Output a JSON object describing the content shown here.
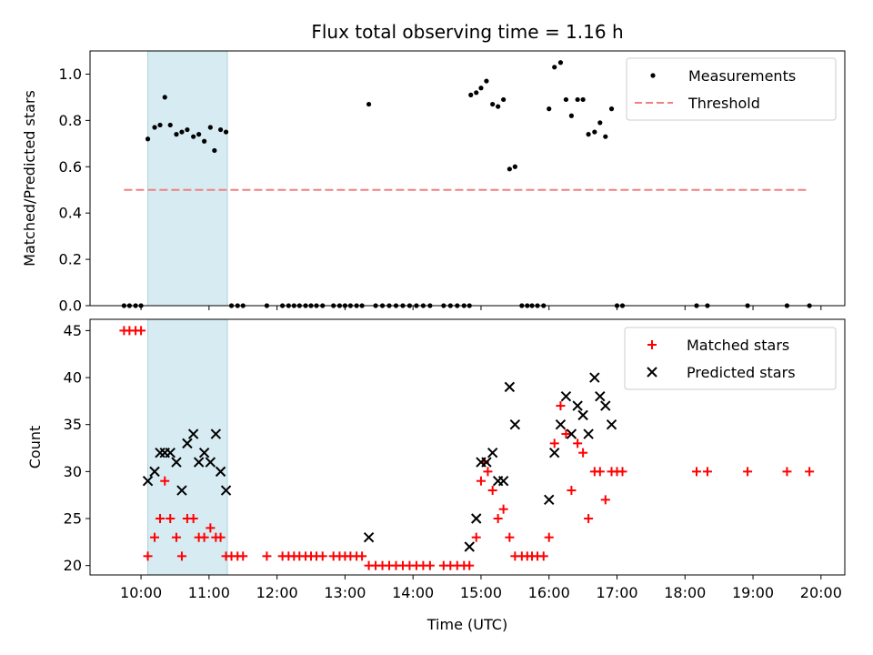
{
  "chart_data": [
    {
      "type": "scatter",
      "title": "Flux total observing time = 1.16 h",
      "xlabel": "",
      "ylabel": "Matched/Predicted stars",
      "xlim_hours": [
        9.25,
        20.35
      ],
      "ylim": [
        0,
        1.1
      ],
      "yticks": [
        0.0,
        0.2,
        0.4,
        0.6,
        0.8,
        1.0
      ],
      "ytick_labels": [
        "0.0",
        "0.2",
        "0.4",
        "0.6",
        "0.8",
        "1.0"
      ],
      "shaded_span_hours": [
        10.1,
        11.27
      ],
      "threshold": {
        "name": "Threshold",
        "value": 0.5,
        "x_start": 9.75,
        "x_end": 19.83,
        "color": "#f08080"
      },
      "legend_position": "upper right",
      "series": [
        {
          "name": "Measurements",
          "color": "#000000",
          "points": [
            [
              9.75,
              0
            ],
            [
              9.83,
              0
            ],
            [
              9.92,
              0
            ],
            [
              10.0,
              0
            ],
            [
              10.1,
              0.72
            ],
            [
              10.2,
              0.77
            ],
            [
              10.28,
              0.78
            ],
            [
              10.35,
              0.9
            ],
            [
              10.43,
              0.78
            ],
            [
              10.52,
              0.74
            ],
            [
              10.6,
              0.75
            ],
            [
              10.68,
              0.76
            ],
            [
              10.77,
              0.73
            ],
            [
              10.85,
              0.74
            ],
            [
              10.93,
              0.71
            ],
            [
              11.02,
              0.77
            ],
            [
              11.08,
              0.67
            ],
            [
              11.17,
              0.76
            ],
            [
              11.25,
              0.75
            ],
            [
              11.33,
              0
            ],
            [
              11.42,
              0
            ],
            [
              11.5,
              0
            ],
            [
              11.85,
              0
            ],
            [
              12.08,
              0
            ],
            [
              12.17,
              0
            ],
            [
              12.25,
              0
            ],
            [
              12.33,
              0
            ],
            [
              12.42,
              0
            ],
            [
              12.5,
              0
            ],
            [
              12.58,
              0
            ],
            [
              12.67,
              0
            ],
            [
              12.83,
              0
            ],
            [
              12.92,
              0
            ],
            [
              13.0,
              0
            ],
            [
              13.08,
              0
            ],
            [
              13.17,
              0
            ],
            [
              13.25,
              0
            ],
            [
              13.35,
              0.87
            ],
            [
              13.45,
              0
            ],
            [
              13.55,
              0
            ],
            [
              13.65,
              0
            ],
            [
              13.75,
              0
            ],
            [
              13.85,
              0
            ],
            [
              13.95,
              0
            ],
            [
              14.05,
              0
            ],
            [
              14.15,
              0
            ],
            [
              14.25,
              0
            ],
            [
              14.45,
              0
            ],
            [
              14.55,
              0
            ],
            [
              14.65,
              0
            ],
            [
              14.75,
              0
            ],
            [
              14.83,
              0
            ],
            [
              14.85,
              0.91
            ],
            [
              14.93,
              0.92
            ],
            [
              15.0,
              0.94
            ],
            [
              15.08,
              0.97
            ],
            [
              15.17,
              0.87
            ],
            [
              15.25,
              0.86
            ],
            [
              15.33,
              0.89
            ],
            [
              15.42,
              0.59
            ],
            [
              15.5,
              0.6
            ],
            [
              15.6,
              0
            ],
            [
              15.68,
              0
            ],
            [
              15.75,
              0
            ],
            [
              15.83,
              0
            ],
            [
              15.92,
              0
            ],
            [
              16.0,
              0.85
            ],
            [
              16.08,
              1.03
            ],
            [
              16.17,
              1.05
            ],
            [
              16.25,
              0.89
            ],
            [
              16.33,
              0.82
            ],
            [
              16.42,
              0.89
            ],
            [
              16.5,
              0.89
            ],
            [
              16.58,
              0.74
            ],
            [
              16.67,
              0.75
            ],
            [
              16.75,
              0.79
            ],
            [
              16.83,
              0.73
            ],
            [
              16.92,
              0.85
            ],
            [
              17.0,
              0
            ],
            [
              17.08,
              0
            ],
            [
              18.17,
              0
            ],
            [
              18.33,
              0
            ],
            [
              18.92,
              0
            ],
            [
              19.5,
              0
            ],
            [
              19.83,
              0
            ]
          ]
        }
      ]
    },
    {
      "type": "scatter",
      "title": "",
      "xlabel": "Time (UTC)",
      "ylabel": "Count",
      "xlim_hours": [
        9.25,
        20.35
      ],
      "ylim": [
        19.0,
        46.2
      ],
      "yticks": [
        20,
        25,
        30,
        35,
        40,
        45
      ],
      "ytick_labels": [
        "20",
        "25",
        "30",
        "35",
        "40",
        "45"
      ],
      "xticks_hours": [
        10,
        11,
        12,
        13,
        14,
        15,
        16,
        17,
        18,
        19,
        20
      ],
      "xtick_labels": [
        "10:00",
        "11:00",
        "12:00",
        "13:00",
        "14:00",
        "15:00",
        "16:00",
        "17:00",
        "18:00",
        "19:00",
        "20:00"
      ],
      "shaded_span_hours": [
        10.1,
        11.27
      ],
      "legend_position": "upper right",
      "series": [
        {
          "name": "Matched stars",
          "marker": "plus",
          "color": "#ff0000",
          "points": [
            [
              9.75,
              45
            ],
            [
              9.83,
              45
            ],
            [
              9.92,
              45
            ],
            [
              10.0,
              45
            ],
            [
              10.1,
              21
            ],
            [
              10.2,
              23
            ],
            [
              10.28,
              25
            ],
            [
              10.35,
              29
            ],
            [
              10.43,
              25
            ],
            [
              10.52,
              23
            ],
            [
              10.6,
              21
            ],
            [
              10.68,
              25
            ],
            [
              10.77,
              25
            ],
            [
              10.85,
              23
            ],
            [
              10.93,
              23
            ],
            [
              11.02,
              24
            ],
            [
              11.1,
              23
            ],
            [
              11.17,
              23
            ],
            [
              11.25,
              21
            ],
            [
              11.33,
              21
            ],
            [
              11.42,
              21
            ],
            [
              11.5,
              21
            ],
            [
              11.85,
              21
            ],
            [
              12.08,
              21
            ],
            [
              12.17,
              21
            ],
            [
              12.25,
              21
            ],
            [
              12.33,
              21
            ],
            [
              12.42,
              21
            ],
            [
              12.5,
              21
            ],
            [
              12.58,
              21
            ],
            [
              12.67,
              21
            ],
            [
              12.83,
              21
            ],
            [
              12.92,
              21
            ],
            [
              13.0,
              21
            ],
            [
              13.08,
              21
            ],
            [
              13.17,
              21
            ],
            [
              13.25,
              21
            ],
            [
              13.35,
              20
            ],
            [
              13.45,
              20
            ],
            [
              13.55,
              20
            ],
            [
              13.65,
              20
            ],
            [
              13.75,
              20
            ],
            [
              13.85,
              20
            ],
            [
              13.95,
              20
            ],
            [
              14.05,
              20
            ],
            [
              14.15,
              20
            ],
            [
              14.25,
              20
            ],
            [
              14.45,
              20
            ],
            [
              14.55,
              20
            ],
            [
              14.65,
              20
            ],
            [
              14.75,
              20
            ],
            [
              14.83,
              20
            ],
            [
              14.93,
              23
            ],
            [
              15.0,
              29
            ],
            [
              15.05,
              31
            ],
            [
              15.1,
              30
            ],
            [
              15.17,
              28
            ],
            [
              15.25,
              25
            ],
            [
              15.33,
              26
            ],
            [
              15.42,
              23
            ],
            [
              15.5,
              21
            ],
            [
              15.6,
              21
            ],
            [
              15.68,
              21
            ],
            [
              15.75,
              21
            ],
            [
              15.83,
              21
            ],
            [
              15.92,
              21
            ],
            [
              16.0,
              23
            ],
            [
              16.08,
              33
            ],
            [
              16.17,
              37
            ],
            [
              16.25,
              34
            ],
            [
              16.33,
              28
            ],
            [
              16.42,
              33
            ],
            [
              16.5,
              32
            ],
            [
              16.58,
              25
            ],
            [
              16.67,
              30
            ],
            [
              16.75,
              30
            ],
            [
              16.83,
              27
            ],
            [
              16.92,
              30
            ],
            [
              17.0,
              30
            ],
            [
              17.08,
              30
            ],
            [
              18.17,
              30
            ],
            [
              18.33,
              30
            ],
            [
              18.92,
              30
            ],
            [
              19.5,
              30
            ],
            [
              19.83,
              30
            ]
          ]
        },
        {
          "name": "Predicted stars",
          "marker": "x",
          "color": "#000000",
          "points": [
            [
              10.1,
              29
            ],
            [
              10.2,
              30
            ],
            [
              10.28,
              32
            ],
            [
              10.35,
              32
            ],
            [
              10.43,
              32
            ],
            [
              10.52,
              31
            ],
            [
              10.6,
              28
            ],
            [
              10.68,
              33
            ],
            [
              10.77,
              34
            ],
            [
              10.85,
              31
            ],
            [
              10.93,
              32
            ],
            [
              11.02,
              31
            ],
            [
              11.1,
              34
            ],
            [
              11.17,
              30
            ],
            [
              11.25,
              28
            ],
            [
              13.35,
              23
            ],
            [
              14.83,
              22
            ],
            [
              14.93,
              25
            ],
            [
              15.0,
              31
            ],
            [
              15.08,
              31
            ],
            [
              15.17,
              32
            ],
            [
              15.25,
              29
            ],
            [
              15.33,
              29
            ],
            [
              15.42,
              39
            ],
            [
              15.5,
              35
            ],
            [
              16.0,
              27
            ],
            [
              16.08,
              32
            ],
            [
              16.17,
              35
            ],
            [
              16.25,
              38
            ],
            [
              16.33,
              34
            ],
            [
              16.42,
              37
            ],
            [
              16.5,
              36
            ],
            [
              16.58,
              34
            ],
            [
              16.67,
              40
            ],
            [
              16.75,
              38
            ],
            [
              16.83,
              37
            ],
            [
              16.92,
              35
            ]
          ]
        }
      ]
    }
  ]
}
